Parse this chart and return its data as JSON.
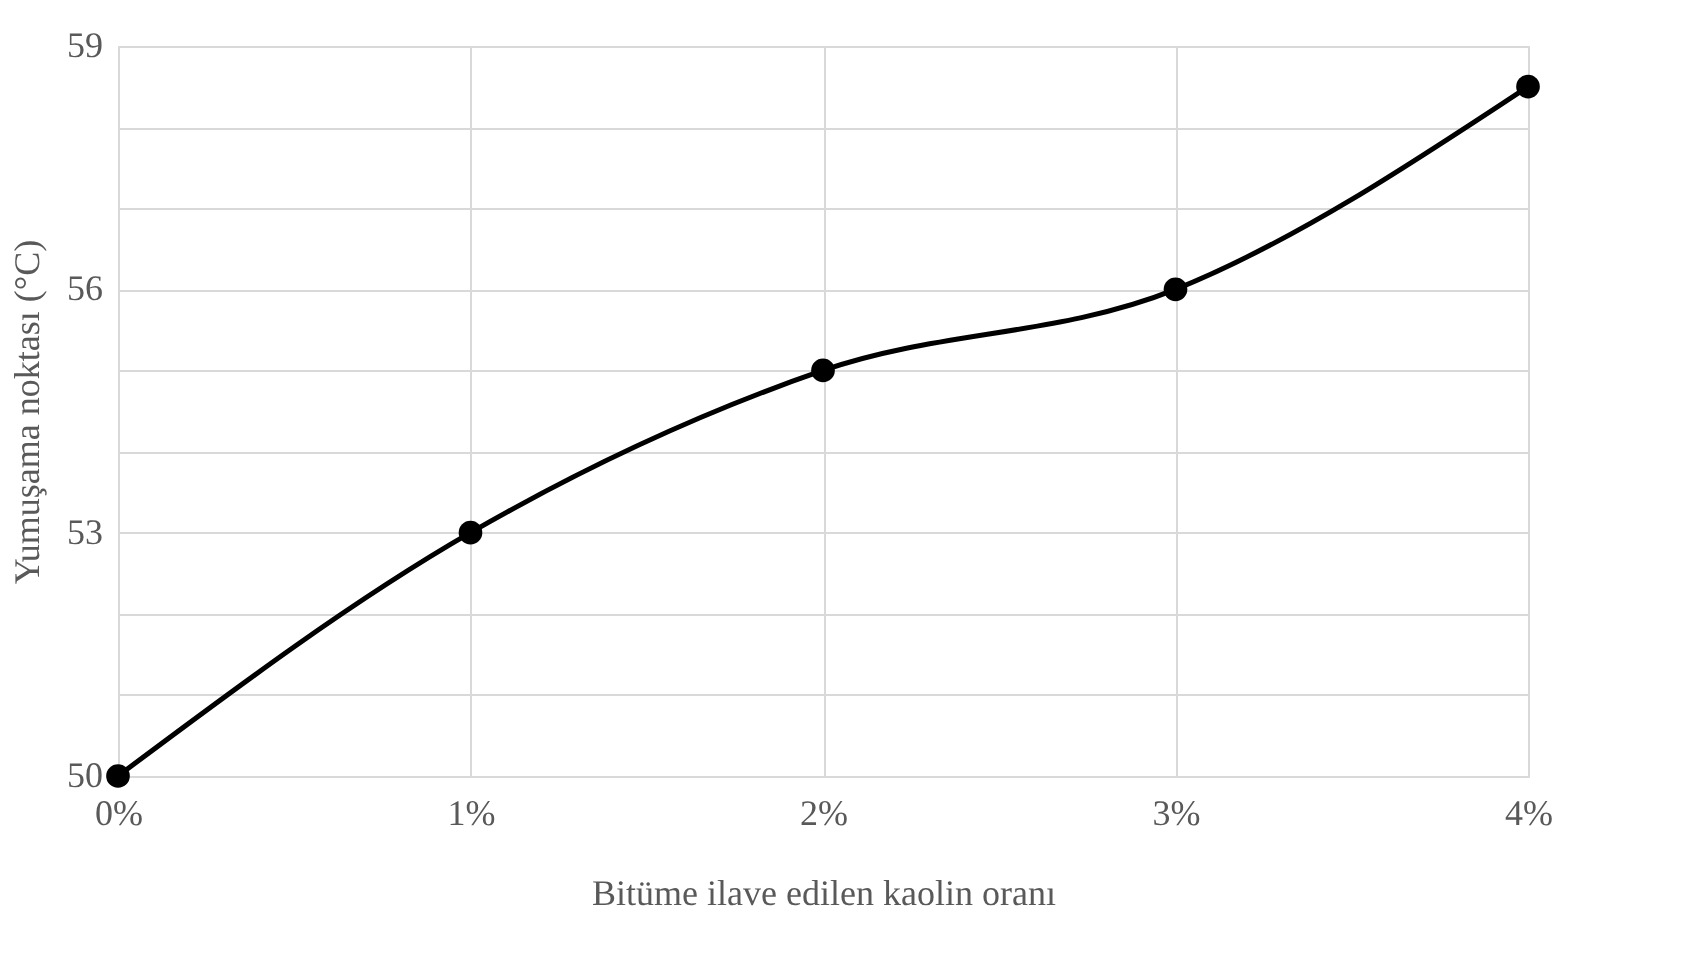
{
  "chart_data": {
    "type": "line",
    "xlabel": "Bitüme ilave edilen kaolin oranı",
    "ylabel": "Yumuşama noktası (°C)",
    "x": [
      0,
      1,
      2,
      3,
      4
    ],
    "series": [
      {
        "color": "#000000",
        "values": [
          50,
          53,
          55,
          56,
          58.5
        ]
      }
    ],
    "xlim": [
      0,
      4
    ],
    "xticks": [
      {
        "value": 0,
        "label": "0%"
      },
      {
        "value": 1,
        "label": "1%"
      },
      {
        "value": 2,
        "label": "2%"
      },
      {
        "value": 3,
        "label": "3%"
      },
      {
        "value": 4,
        "label": "4%"
      }
    ],
    "ylim": [
      50,
      59
    ],
    "yticks": [
      50,
      {
        "value": 51,
        "label": null
      },
      {
        "value": 52,
        "label": null
      },
      53,
      {
        "value": 54,
        "label": null
      },
      {
        "value": 55,
        "label": null
      },
      56,
      {
        "value": 57,
        "label": null
      },
      {
        "value": 58,
        "label": null
      },
      59
    ],
    "grid": true,
    "marker": "circle",
    "line_style": "solid"
  }
}
